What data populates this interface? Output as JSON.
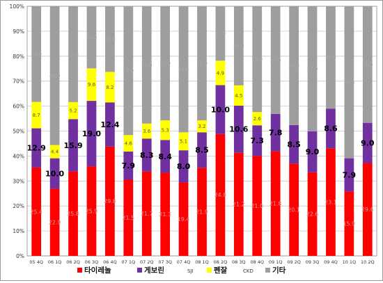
{
  "chart_data": {
    "type": "bar",
    "stacked": true,
    "percent": true,
    "grid": true,
    "legend_position": "bottom",
    "ylim": [
      0,
      100
    ],
    "y_ticks": [
      "0%",
      "10%",
      "20%",
      "30%",
      "40%",
      "50%",
      "60%",
      "70%",
      "80%",
      "90%",
      "100%"
    ],
    "categories": [
      "05 4Q",
      "06 1Q",
      "06 2Q",
      "06 3Q",
      "06 4Q",
      "07 1Q",
      "07 2Q",
      "07 3Q",
      "07 4Q",
      "08 1Q",
      "08 2Q",
      "08 3Q",
      "08 4Q",
      "09 1Q",
      "09 2Q",
      "09 3Q",
      "09 4Q",
      "10 1Q",
      "10 2Q"
    ],
    "series": [
      {
        "name": "타이레놀",
        "color": "#ff0000",
        "values": [
          35.4,
          26.9,
          33.8,
          35.9,
          43.8,
          30.5,
          33.8,
          33.3,
          29.4,
          35.3,
          48.8,
          41.3,
          40.0,
          41.9,
          37.0,
          33.5,
          43.1,
          25.8,
          37.2
        ],
        "labels": [
          "25.4",
          "22.9",
          "25.8",
          "25.9",
          "29.8",
          "21.5",
          "21.7",
          "21.3",
          "19.4",
          "21.9",
          "24.8",
          "21.2",
          "21.0",
          "21.8",
          "20.1",
          "22.6",
          "23.1",
          "15.9",
          "29.6"
        ],
        "label_color": "#d8a0a0",
        "label_size": 8
      },
      {
        "name": "게보린",
        "color": "#7030a0",
        "values": [
          15.7,
          12.2,
          21.0,
          26.2,
          17.7,
          11.3,
          13.2,
          13.1,
          12.9,
          14.2,
          19.6,
          18.9,
          12.3,
          15.0,
          15.4,
          16.4,
          15.9,
          13.3,
          16.1
        ],
        "labels": [
          "12.9",
          "10.0",
          "15.9",
          "19.0",
          "12.4",
          "7.9",
          "8.3",
          "8.4",
          "8.0",
          "8.5",
          "10.0",
          "10.6",
          "7.3",
          "7.8",
          "8.5",
          "9.0",
          "8.6",
          "7.9",
          "9.0"
        ],
        "label_color": "#000000",
        "label_size": 11
      },
      {
        "name": "SJI",
        "color": "#ffff00",
        "values": [
          10.6,
          5.3,
          6.8,
          13.0,
          12.2,
          6.6,
          6.0,
          7.9,
          7.2,
          4.8,
          9.8,
          8.1,
          5.3,
          0,
          0,
          0,
          0,
          0,
          0
        ],
        "labels": [
          "8.7",
          "4.4",
          "5.2",
          "9.6",
          "8.2",
          "4.6",
          "3.6",
          "5.3",
          "5.1",
          "3.2",
          "4.9",
          "4.5",
          "2.6",
          "",
          "",
          "",
          "",
          "",
          ""
        ],
        "label_color": "#555555",
        "label_size": 7
      },
      {
        "name": "펜잘",
        "color": "#ffff00",
        "values": [
          0,
          0,
          0,
          0,
          0,
          0,
          0,
          0,
          0,
          0,
          0,
          0,
          0,
          0,
          0,
          0,
          0,
          0,
          0
        ],
        "labels": [],
        "label_color": "#555555",
        "label_size": 7
      },
      {
        "name": "CKD",
        "color": "#9e9e9e",
        "values": [
          0,
          0,
          0,
          0,
          0,
          0,
          0,
          0,
          0,
          0,
          0,
          0,
          0,
          0,
          0,
          0,
          0,
          0,
          0
        ],
        "labels": [],
        "label_color": "#777777",
        "label_size": 7
      },
      {
        "name": "기타",
        "color": "#9e9e9e",
        "values": [
          38.3,
          55.6,
          38.4,
          24.9,
          26.3,
          51.6,
          47.0,
          45.7,
          50.5,
          45.7,
          21.8,
          31.7,
          42.4,
          43.1,
          47.6,
          50.1,
          41.0,
          60.9,
          46.7
        ],
        "labels": [
          "31.0",
          "46.0",
          "29.0",
          "18.0",
          "18.0",
          "37.0",
          "30.0",
          "29.0",
          "33.0",
          "28.0",
          "11.0",
          "17.0",
          "23.0",
          "22.0",
          "26.0",
          "27.0",
          "22.0",
          "36.0",
          "26.0"
        ],
        "label_color": "#a8a8a8",
        "label_size": 7
      }
    ],
    "legend": [
      {
        "label": "타이레놀",
        "color": "#ff0000",
        "swatch": true,
        "bold": true
      },
      {
        "label": "게보린",
        "color": "#7030a0",
        "swatch": true,
        "bold": true
      },
      {
        "label": "SJI",
        "color": "",
        "swatch": false,
        "bold": false
      },
      {
        "label": "펜잘",
        "color": "#ffff00",
        "swatch": true,
        "bold": true
      },
      {
        "label": "CKD",
        "color": "",
        "swatch": false,
        "bold": false
      },
      {
        "label": "기타",
        "color": "#9e9e9e",
        "swatch": true,
        "bold": true
      }
    ]
  }
}
